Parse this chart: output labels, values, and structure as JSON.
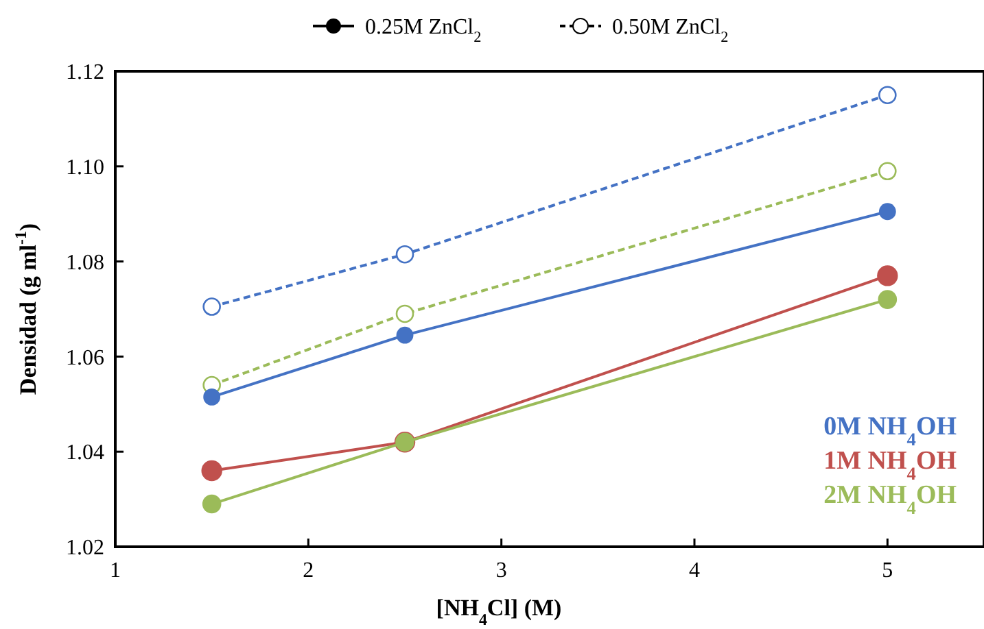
{
  "chart_data": {
    "type": "line",
    "xlabel": "[NH$_{4}$Cl] (M)",
    "ylabel": "Densidad (g ml$^{-1}$)",
    "x": [
      1.5,
      2.5,
      5
    ],
    "xlim": [
      1,
      5.5
    ],
    "xticks": [
      1,
      2,
      3,
      4,
      5
    ],
    "ylim": [
      1.02,
      1.12
    ],
    "yticks": [
      {
        "value": 1.02,
        "label": "1.02"
      },
      {
        "value": 1.04,
        "label": "1.04"
      },
      {
        "value": 1.06,
        "label": "1.06"
      },
      {
        "value": 1.08,
        "label": "1.08"
      },
      {
        "value": 1.1,
        "label": "1.10"
      },
      {
        "value": 1.12,
        "label": "1.12"
      }
    ],
    "grid": false,
    "legend": "bottom right",
    "marker": "circle",
    "annotations": [
      "0.25M ZnCl$_{2}$",
      "0.50M ZnCl$_{2}$"
    ],
    "series": [
      {
        "color": "#4472c4",
        "line_style": "dashed",
        "values": [
          1.0705,
          1.0815,
          1.115
        ]
      },
      {
        "color": "#9bbb59",
        "line_style": "dashed",
        "values": [
          1.054,
          1.069,
          1.099
        ]
      },
      {
        "name": "0M NH$_{4}$OH",
        "color": "#4472c4",
        "line_style": "solid",
        "values": [
          1.0515,
          1.0645,
          1.0905
        ]
      },
      {
        "name": "1M NH$_{4}$OH",
        "color": "#c0504d",
        "line_style": "solid",
        "values": [
          1.036,
          1.042,
          1.077
        ]
      },
      {
        "name": "2M NH$_{4}$OH",
        "color": "#9bbb59",
        "line_style": "solid",
        "values": [
          1.029,
          1.042,
          1.072
        ]
      }
    ]
  }
}
